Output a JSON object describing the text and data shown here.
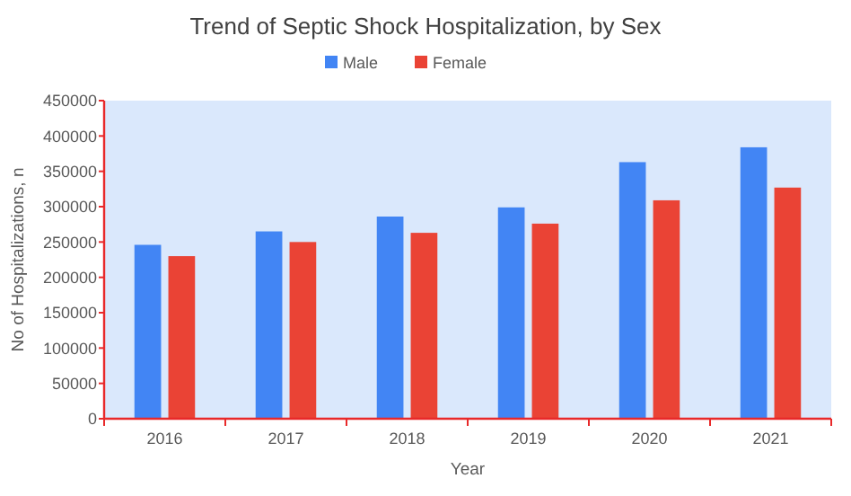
{
  "chart_data": {
    "type": "bar",
    "title": "Trend of Septic Shock Hospitalization, by Sex",
    "xlabel": "Year",
    "ylabel": "No of Hospitalizations, n",
    "categories": [
      "2016",
      "2017",
      "2018",
      "2019",
      "2020",
      "2021"
    ],
    "series": [
      {
        "name": "Male",
        "color": "#4285f4",
        "values": [
          246000,
          265000,
          286000,
          299000,
          363000,
          384000
        ]
      },
      {
        "name": "Female",
        "color": "#ea4335",
        "values": [
          230000,
          250000,
          263000,
          276000,
          309000,
          327000
        ]
      }
    ],
    "ylim": [
      0,
      450000
    ],
    "yticks": [
      0,
      50000,
      100000,
      150000,
      200000,
      250000,
      300000,
      350000,
      400000,
      450000
    ],
    "grid": false,
    "legend": "top"
  }
}
